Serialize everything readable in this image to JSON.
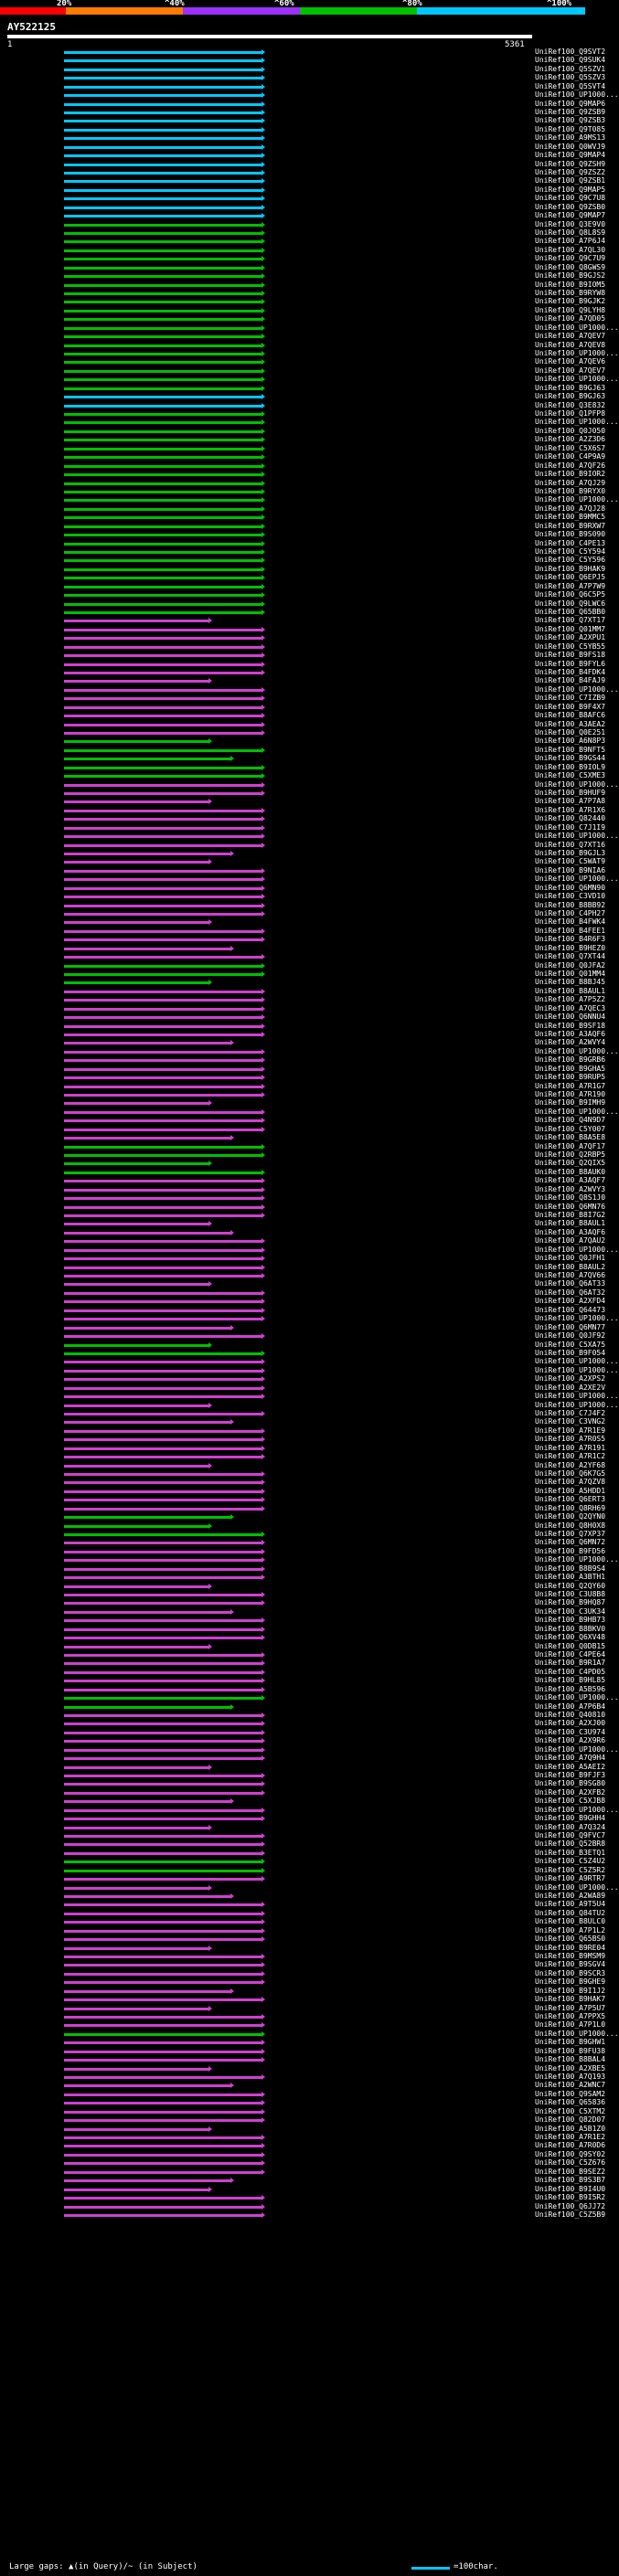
{
  "legend": {
    "colors": [
      "#ff0000",
      "#ff7a00",
      "#9b30ff",
      "#00c000",
      "#00c8ff"
    ],
    "labels": [
      "20%",
      "^40%",
      "^60%",
      "^80%",
      "^100%"
    ]
  },
  "query": {
    "name": "AY522125",
    "start": "1",
    "end": "5361"
  },
  "hits": {
    "color_cyan": "#00c8ff",
    "color_green": "#00c000",
    "color_magenta": "#d040d0",
    "labels": [
      "UniRef100_Q9SVT2",
      "UniRef100_Q9SUK4",
      "UniRef100_Q5SZV1",
      "UniRef100_Q5SZV3",
      "UniRef100_Q5SVT4",
      "UniRef100_UP1000...",
      "UniRef100_Q9MAP6",
      "UniRef100_Q9ZSB9",
      "UniRef100_Q9ZSB3",
      "UniRef100_Q9T085",
      "UniRef100_A9MS13",
      "UniRef100_Q0WVJ9",
      "UniRef100_Q9MAP4",
      "UniRef100_Q9ZSH9",
      "UniRef100_Q9ZSZ2",
      "UniRef100_Q9ZSB1",
      "UniRef100_Q9MAP5",
      "UniRef100_Q9C7U8",
      "UniRef100_Q9ZSB0",
      "UniRef100_Q9MAP7",
      "UniRef100_Q3E9V0",
      "UniRef100_Q8L8S9",
      "UniRef100_A7P6J4",
      "UniRef100_A7QL30",
      "UniRef100_Q9C7U9",
      "UniRef100_Q8GWS9",
      "UniRef100_B9GJS2",
      "UniRef100_B9IOM5",
      "UniRef100_B9RYW8",
      "UniRef100_B9GJK2",
      "UniRef100_Q9LYH8",
      "UniRef100_A7QD05",
      "UniRef100_UP1000...",
      "UniRef100_A7QEV7",
      "UniRef100_A7QEV8",
      "UniRef100_UP1000...",
      "UniRef100_A7QEV6",
      "UniRef100_A7QEV7",
      "UniRef100_UP1000...",
      "UniRef100_B9GJ63",
      "UniRef100_B9GJ63",
      "UniRef100_Q3E832",
      "UniRef100_Q1PFP8",
      "UniRef100_UP1000...",
      "UniRef100_Q0J050",
      "UniRef100_A2Z3D6",
      "UniRef100_C5X6S7",
      "UniRef100_C4P9A9",
      "UniRef100_A7QF26",
      "UniRef100_B9IOR2",
      "UniRef100_A7QJ29",
      "UniRef100_B9RYX0",
      "UniRef100_UP1000...",
      "UniRef100_A7QJ28",
      "UniRef100_B9MMC5",
      "UniRef100_B9RXW7",
      "UniRef100_B9S090",
      "UniRef100_C4PE13",
      "UniRef100_C5Y594",
      "UniRef100_C5Y596",
      "UniRef100_B9HAK9",
      "UniRef100_Q6EPJ5",
      "UniRef100_A7P7W9",
      "UniRef100_Q6C5P5",
      "UniRef100_Q9LWC6",
      "UniRef100_Q65BB0",
      "UniRef100_Q7XT17",
      "UniRef100_Q01MM7",
      "UniRef100_A2XPU1",
      "UniRef100_C5YB55",
      "UniRef100_B9FS18",
      "UniRef100_B9FYL6",
      "UniRef100_B4FDK4",
      "UniRef100_B4FAJ9",
      "UniRef100_UP1000...",
      "UniRef100_C7IZB9",
      "UniRef100_B9F4X7",
      "UniRef100_B8AFC6",
      "UniRef100_A3AEA2",
      "UniRef100_Q0E251",
      "UniRef100_A6N8P3",
      "UniRef100_B9NFT5",
      "UniRef100_B9GS44",
      "UniRef100_B9IOL9",
      "UniRef100_C5XME3",
      "UniRef100_UP1000...",
      "UniRef100_B9HUF9",
      "UniRef100_A7P7A8",
      "UniRef100_A7R1X6",
      "UniRef100_Q82440",
      "UniRef100_C7J1I9",
      "UniRef100_UP1000...",
      "UniRef100_Q7XT16",
      "UniRef100_B9GJL3",
      "UniRef100_C5WAT9",
      "UniRef100_B9NIA6",
      "UniRef100_UP1000...",
      "UniRef100_Q6MN90",
      "UniRef100_C3VD10",
      "UniRef100_B8BB92",
      "UniRef100_C4PH27",
      "UniRef100_B4FWK4",
      "UniRef100_B4FEE1",
      "UniRef100_B4R6F3",
      "UniRef100_B9HEZ0",
      "UniRef100_Q7XT44",
      "UniRef100_Q0JFA2",
      "UniRef100_Q01MM4",
      "UniRef100_B8BJ45",
      "UniRef100_B8AUL1",
      "UniRef100_A7P5Z2",
      "UniRef100_A7QEC3",
      "UniRef100_Q6NNU4",
      "UniRef100_B9SF18",
      "UniRef100_A3AQF6",
      "UniRef100_A2WVY4",
      "UniRef100_UP1000...",
      "UniRef100_B9GRB6",
      "UniRef100_B9GHA5",
      "UniRef100_B9RUP5",
      "UniRef100_A7R1G7",
      "UniRef100_A7R190",
      "UniRef100_B9IMH9",
      "UniRef100_UP1000...",
      "UniRef100_Q4N9D7",
      "UniRef100_C5Y007",
      "UniRef100_B8A5E8",
      "UniRef100_A7QF17",
      "UniRef100_Q2RBP5",
      "UniRef100_Q2QIX5",
      "UniRef100_B8AUK0",
      "UniRef100_A3AQF7",
      "UniRef100_A2WVY3",
      "UniRef100_Q8S1J0",
      "UniRef100_Q6MN76",
      "UniRef100_B8I7G2",
      "UniRef100_B8AUL1",
      "UniRef100_A3AQF6",
      "UniRef100_A7QAU2",
      "UniRef100_UP1000...",
      "UniRef100_Q0JFH1",
      "UniRef100_B8AUL2",
      "UniRef100_A7QV66",
      "UniRef100_Q6AT33",
      "UniRef100_Q6AT32",
      "UniRef100_A2XFD4",
      "UniRef100_Q64473",
      "UniRef100_UP1000...",
      "UniRef100_Q6MN77",
      "UniRef100_Q0JF92",
      "UniRef100_C5XA75",
      "UniRef100_B9F054",
      "UniRef100_UP1000...",
      "UniRef100_UP1000...",
      "UniRef100_A2XPS2",
      "UniRef100_A2XE2V",
      "UniRef100_UP1000...",
      "UniRef100_UP1000...",
      "UniRef100_C7J4F2",
      "UniRef100_C3VNG2",
      "UniRef100_A7R1E9",
      "UniRef100_A7R0S5",
      "UniRef100_A7R191",
      "UniRef100_A7R1C2",
      "UniRef100_A2YF68",
      "UniRef100_Q6K7G5",
      "UniRef100_A7QZV8",
      "UniRef100_A5HDD1",
      "UniRef100_Q6ERT3",
      "UniRef100_Q8RH69",
      "UniRef100_Q2QYN0",
      "UniRef100_Q8H0X8",
      "UniRef100_Q7XP37",
      "UniRef100_Q6MN72",
      "UniRef100_B9FD56",
      "UniRef100_UP1000...",
      "UniRef100_B8B9S4",
      "UniRef100_A3BTH1",
      "UniRef100_Q2QY60",
      "UniRef100_C3U8B8",
      "UniRef100_B9HQ87",
      "UniRef100_C3UK34",
      "UniRef100_B9HB73",
      "UniRef100_B8BKV0",
      "UniRef100_Q6XV48",
      "UniRef100_Q0DB15",
      "UniRef100_C4PE64",
      "UniRef100_B9R1A7",
      "UniRef100_C4PD05",
      "UniRef100_B9HL85",
      "UniRef100_A5B596",
      "UniRef100_UP1000...",
      "UniRef100_A7P6B4",
      "UniRef100_Q40810",
      "UniRef100_A2XJ00",
      "UniRef100_C3U974",
      "UniRef100_A2X9R6",
      "UniRef100_UP1000...",
      "UniRef100_A7Q9H4",
      "UniRef100_A5AEI2",
      "UniRef100_B9FJF3",
      "UniRef100_B9SG80",
      "UniRef100_A2XFB2",
      "UniRef100_C5XJB8",
      "UniRef100_UP1000...",
      "UniRef100_B9GHH4",
      "UniRef100_A7Q324",
      "UniRef100_Q9FVC7",
      "UniRef100_Q52BR8",
      "UniRef100_B3ETQ1",
      "UniRef100_C5Z4U2",
      "UniRef100_C5Z5R2",
      "UniRef100_A9RTR7",
      "UniRef100_UP1000...",
      "UniRef100_A2WA89",
      "UniRef100_A9T5U4",
      "UniRef100_Q84TU2",
      "UniRef100_B8ULC0",
      "UniRef100_A7P1L2",
      "UniRef100_Q65BS0",
      "UniRef100_B9RE04",
      "UniRef100_B9MSM9",
      "UniRef100_B9SGV4",
      "UniRef100_B9SCR3",
      "UniRef100_B9GHE9",
      "UniRef100_B9I1J2",
      "UniRef100_B9HAK7",
      "UniRef100_A7P5U7",
      "UniRef100_A7PPX5",
      "UniRef100_A7P1L0",
      "UniRef100_UP1000...",
      "UniRef100_B9GHW1",
      "UniRef100_B9FU38",
      "UniRef100_B8BAL4",
      "UniRef100_A2XBE5",
      "UniRef100_A7Q193",
      "UniRef100_A2WNC7",
      "UniRef100_Q9SAM2",
      "UniRef100_Q65836",
      "UniRef100_C5XTM2",
      "UniRef100_Q82D07",
      "UniRef100_A5B1Z0",
      "UniRef100_A7R1E2",
      "UniRef100_A7R0D6",
      "UniRef100_Q9SY02",
      "UniRef100_C5Z676",
      "UniRef100_B9SEZ2",
      "UniRef100_B9S3B7",
      "UniRef100_B9I4U0",
      "UniRef100_B9I5R2",
      "UniRef100_Q6JJ72",
      "UniRef100_C5Z5B9"
    ]
  },
  "footer": {
    "large_gaps": "Large gaps: ▲(in Query)/~ (in Subject)",
    "scale": "=100char."
  }
}
